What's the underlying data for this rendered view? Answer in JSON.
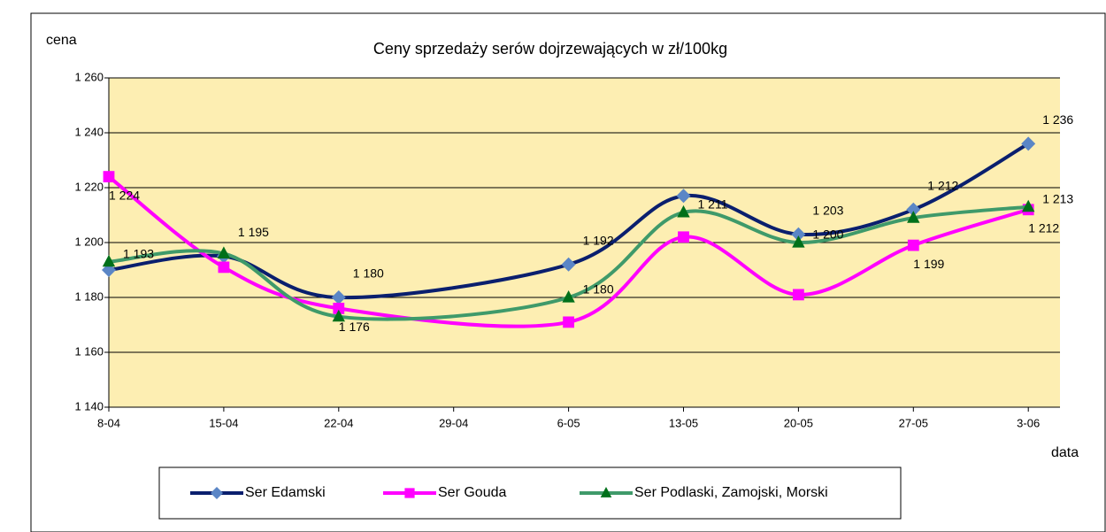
{
  "chart_data": {
    "type": "line",
    "title": "Ceny sprzedaży serów dojrzewających w zł/100kg",
    "y_label": "cena",
    "x_label": "data",
    "categories": [
      "8-04",
      "15-04",
      "22-04",
      "29-04",
      "6-05",
      "13-05",
      "20-05",
      "27-05",
      "3-06"
    ],
    "series": [
      {
        "name": "Ser Edamski",
        "color": "#0a1f6e",
        "marker": "diamond",
        "marker_color": "#5b86c6",
        "values": [
          1190,
          1195,
          1180,
          null,
          1192,
          1217,
          1203,
          1212,
          1236
        ],
        "value_labels": [
          null,
          "1 195",
          "1 180",
          null,
          "1 192",
          null,
          "1 203",
          "1 212",
          "1 236"
        ]
      },
      {
        "name": "Ser Gouda",
        "color": "#ff00ff",
        "marker": "square",
        "marker_color": "#ff00ff",
        "values": [
          1224,
          1191,
          1176,
          null,
          1171,
          1202,
          1181,
          1199,
          1212
        ],
        "value_labels": [
          "1 224",
          null,
          "1 176",
          null,
          null,
          null,
          null,
          "1 199",
          "1 212"
        ]
      },
      {
        "name": "Ser Podlaski, Zamojski, Morski",
        "color": "#3f9a6a",
        "marker": "triangle",
        "marker_color": "#00701a",
        "values": [
          1193,
          1196,
          1173,
          null,
          1180,
          1211,
          1200,
          1209,
          1213
        ],
        "value_labels": [
          "1 193",
          null,
          null,
          null,
          "1 180",
          "1 211",
          "1 200",
          null,
          "1 213"
        ]
      }
    ],
    "ylim": [
      1140,
      1260
    ],
    "yticks": [
      {
        "value": 1140,
        "label": "1 140"
      },
      {
        "value": 1160,
        "label": "1 160"
      },
      {
        "value": 1180,
        "label": "1 180"
      },
      {
        "value": 1200,
        "label": "1 200"
      },
      {
        "value": 1220,
        "label": "1 220"
      },
      {
        "value": 1240,
        "label": "1 240"
      },
      {
        "value": 1260,
        "label": "1 260"
      }
    ],
    "grid": true,
    "plot_background": "#fdeeb2",
    "legend": "bottom"
  }
}
